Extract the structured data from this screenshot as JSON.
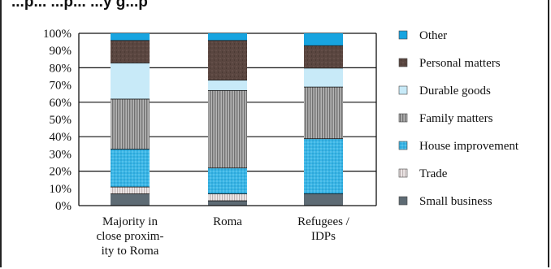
{
  "chart_data": {
    "type": "bar",
    "stacked": true,
    "title": "...p... ...p... ...y g...p",
    "categories": [
      [
        "Majority in",
        "close proxim-",
        "ity to Roma"
      ],
      [
        "Roma"
      ],
      [
        "Refugees /",
        "IDPs"
      ]
    ],
    "ylim": [
      0,
      100
    ],
    "yticks": [
      0,
      10,
      20,
      30,
      40,
      50,
      60,
      70,
      80,
      90,
      100
    ],
    "ytick_labels": [
      "0%",
      "10%",
      "20%",
      "30%",
      "40%",
      "50%",
      "60%",
      "70%",
      "80%",
      "90%",
      "100%"
    ],
    "legend_position": "right",
    "series": [
      {
        "name": "Small business",
        "color": "#5e6b74",
        "pattern": "solid",
        "values": [
          7,
          3,
          7
        ]
      },
      {
        "name": "Trade",
        "color": "#d8d0d0",
        "pattern": "vstripe",
        "values": [
          4,
          4,
          0
        ]
      },
      {
        "name": "House improvement",
        "color": "#3ab6e6",
        "pattern": "dots",
        "values": [
          22,
          15,
          32
        ]
      },
      {
        "name": "Family matters",
        "color": "#9a9a9a",
        "pattern": "vstripe",
        "values": [
          29,
          45,
          30
        ]
      },
      {
        "name": "Durable goods",
        "color": "#c8eaf8",
        "pattern": "solid",
        "values": [
          21,
          6,
          11
        ]
      },
      {
        "name": "Personal matters",
        "color": "#5a4640",
        "pattern": "speckle",
        "values": [
          13,
          23,
          13
        ]
      },
      {
        "name": "Other",
        "color": "#17a4e0",
        "pattern": "solid",
        "values": [
          4,
          4,
          7
        ]
      }
    ],
    "legend_order": [
      "Other",
      "Personal matters",
      "Durable goods",
      "Family matters",
      "House improvement",
      "Trade",
      "Small business"
    ]
  }
}
